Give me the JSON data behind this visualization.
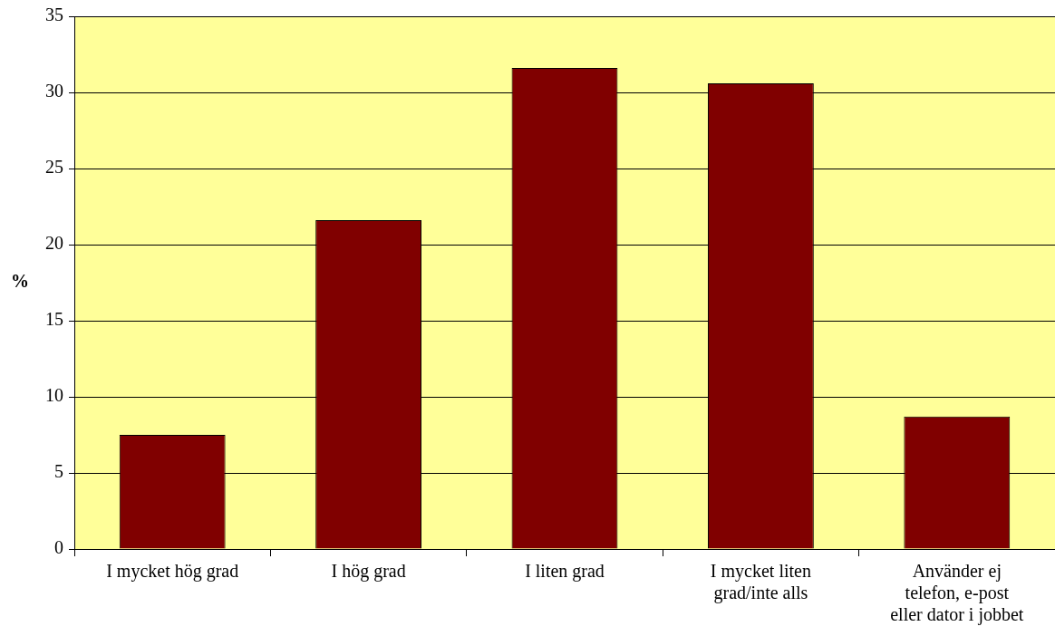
{
  "chart_data": {
    "type": "bar",
    "ylabel": "%",
    "categories": [
      "I mycket hög grad",
      "I hög grad",
      "I liten grad",
      "I mycket liten grad/inte alls",
      "Använder ej telefon, e-post eller dator i jobbet"
    ],
    "values": [
      7.5,
      21.6,
      31.6,
      30.6,
      8.7
    ],
    "color": "#800000",
    "ylim": [
      0,
      35
    ],
    "yticks": [
      0,
      5,
      10,
      15,
      20,
      25,
      30,
      35
    ],
    "grid": "y",
    "legend": false
  }
}
